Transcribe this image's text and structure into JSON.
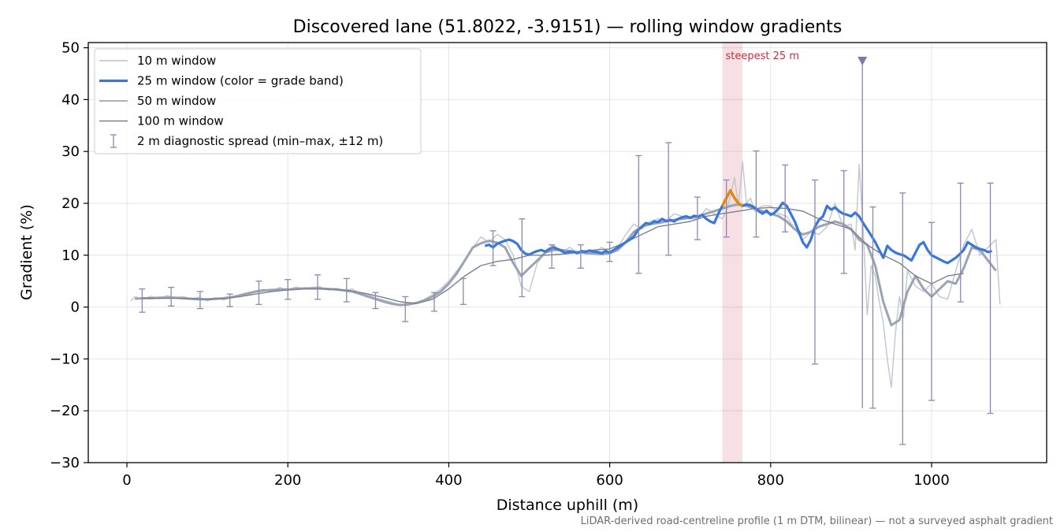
{
  "chart_data": {
    "type": "line",
    "title": "Discovered lane (51.8022, -3.9151) — rolling window gradients",
    "xlabel": "Distance uphill (m)",
    "ylabel": "Gradient (%)",
    "xlim": [
      -48,
      1143
    ],
    "ylim": [
      -30,
      51
    ],
    "xticks": [
      0,
      200,
      400,
      600,
      800,
      1000
    ],
    "yticks": [
      -30,
      -20,
      -10,
      0,
      10,
      20,
      30,
      40,
      50
    ],
    "grid": true,
    "legend_position": "top-left",
    "footnote": "LiDAR-derived road-centreline profile (1 m DTM, bilinear) — not a surveyed asphalt gradient",
    "annotation": {
      "label": "steepest 25 m",
      "x_start": 740,
      "x_end": 765,
      "color": "#c03040",
      "marker_x": 914,
      "marker_y": 47.5
    },
    "series": [
      {
        "name": "10 m window",
        "color": "#b8c0cc",
        "x": [
          5,
          10,
          20,
          30,
          40,
          50,
          60,
          70,
          80,
          90,
          100,
          110,
          120,
          130,
          140,
          150,
          160,
          170,
          180,
          190,
          200,
          210,
          220,
          230,
          240,
          250,
          260,
          270,
          280,
          290,
          300,
          310,
          320,
          330,
          340,
          350,
          360,
          370,
          380,
          390,
          400,
          410,
          420,
          430,
          440,
          450,
          460,
          470,
          480,
          490,
          500,
          510,
          520,
          530,
          540,
          550,
          560,
          570,
          580,
          590,
          600,
          610,
          620,
          630,
          640,
          650,
          660,
          670,
          680,
          690,
          700,
          710,
          720,
          730,
          740,
          745,
          750,
          755,
          760,
          765,
          770,
          775,
          780,
          790,
          800,
          810,
          820,
          830,
          840,
          850,
          860,
          870,
          880,
          890,
          900,
          905,
          910,
          915,
          920,
          925,
          930,
          935,
          940,
          945,
          950,
          955,
          960,
          965,
          970,
          980,
          990,
          1000,
          1010,
          1020,
          1030,
          1040,
          1050,
          1060,
          1070,
          1080,
          1085
        ],
        "y": [
          1.2,
          2.0,
          1.5,
          2.1,
          1.6,
          2.2,
          1.8,
          2.0,
          1.6,
          1.9,
          1.2,
          1.8,
          1.4,
          1.9,
          2.4,
          2.8,
          3.1,
          3.4,
          3.0,
          3.8,
          3.2,
          3.9,
          3.5,
          3.8,
          3.9,
          3.3,
          3.6,
          3.2,
          3.5,
          2.6,
          2.4,
          1.7,
          1.3,
          0.9,
          0.4,
          0.7,
          0.9,
          1.5,
          2.4,
          3.5,
          5.0,
          7.0,
          9.0,
          11.5,
          13.5,
          12.5,
          14.0,
          13.0,
          10.0,
          4.0,
          3.0,
          8.5,
          10.5,
          12.0,
          10.5,
          11.5,
          10.5,
          11.0,
          10.5,
          11.5,
          10.5,
          11.5,
          14.0,
          16.0,
          15.0,
          16.5,
          17.0,
          16.5,
          18.0,
          17.5,
          17.0,
          17.0,
          19.0,
          18.0,
          17.0,
          18.5,
          21.5,
          25.0,
          19.5,
          28.0,
          20.0,
          21.0,
          18.5,
          19.5,
          19.5,
          18.0,
          17.5,
          15.0,
          13.0,
          14.5,
          14.0,
          15.5,
          20.0,
          15.5,
          16.0,
          11.0,
          27.5,
          15.0,
          -1.5,
          8.0,
          6.0,
          1.0,
          -3.0,
          -10.0,
          -15.5,
          -5.0,
          2.0,
          -2.0,
          7.0,
          4.0,
          3.0,
          4.5,
          2.0,
          1.5,
          7.0,
          12.0,
          15.0,
          10.0,
          11.5,
          13.0,
          0.5
        ]
      },
      {
        "name": "25 m window (color = grade band)",
        "color": "#3a78d8",
        "x": [
          445,
          450,
          455,
          460,
          465,
          470,
          475,
          480,
          485,
          490,
          495,
          500,
          505,
          510,
          515,
          520,
          525,
          530,
          535,
          540,
          545,
          550,
          555,
          560,
          565,
          570,
          575,
          580,
          585,
          590,
          595,
          600,
          605,
          610,
          615,
          620,
          625,
          630,
          635,
          640,
          645,
          650,
          655,
          660,
          665,
          670,
          675,
          680,
          685,
          690,
          695,
          700,
          705,
          710,
          715,
          720,
          725,
          730,
          735,
          740,
          745,
          750,
          755,
          760,
          765,
          770,
          775,
          780,
          785,
          790,
          795,
          800,
          805,
          810,
          815,
          820,
          825,
          830,
          835,
          840,
          845,
          850,
          855,
          860,
          865,
          870,
          875,
          880,
          885,
          890,
          895,
          900,
          905,
          910,
          915,
          920,
          925,
          930,
          935,
          940,
          945,
          950,
          955,
          960,
          965,
          970,
          975,
          980,
          985,
          990,
          995,
          1000,
          1005,
          1010,
          1015,
          1020,
          1025,
          1030,
          1035,
          1040,
          1045,
          1050,
          1055,
          1060,
          1065,
          1070,
          1075
        ],
        "y": [
          11.8,
          12.0,
          11.5,
          12.2,
          12.5,
          12.8,
          13.0,
          12.7,
          12.2,
          11.0,
          10.3,
          10.1,
          10.5,
          10.8,
          11.0,
          10.7,
          11.2,
          11.5,
          11.2,
          10.9,
          10.4,
          10.7,
          10.6,
          10.4,
          10.8,
          10.6,
          10.9,
          10.7,
          10.6,
          10.4,
          10.8,
          10.5,
          11.0,
          11.5,
          12.0,
          12.5,
          13.0,
          13.6,
          14.8,
          15.5,
          16.2,
          16.0,
          16.5,
          16.4,
          17.0,
          16.6,
          16.8,
          16.5,
          17.0,
          17.3,
          17.5,
          17.2,
          17.6,
          17.4,
          17.8,
          17.0,
          16.5,
          16.2,
          18.0,
          19.5,
          21.0,
          22.5,
          21.0,
          20.0,
          19.5,
          19.8,
          19.6,
          19.2,
          18.5,
          18.0,
          18.6,
          17.8,
          18.2,
          19.0,
          20.1,
          19.5,
          18.0,
          16.5,
          14.5,
          12.5,
          11.5,
          13.0,
          15.5,
          16.8,
          17.5,
          19.5,
          18.8,
          19.2,
          18.5,
          18.0,
          17.8,
          17.5,
          18.2,
          17.5,
          16.2,
          15.0,
          13.8,
          12.5,
          11.0,
          9.5,
          11.8,
          11.0,
          10.5,
          10.2,
          10.0,
          9.5,
          9.0,
          10.5,
          12.0,
          12.5,
          11.0,
          10.0,
          9.6,
          9.2,
          8.8,
          8.5,
          9.0,
          9.5,
          10.2,
          11.0,
          12.5,
          12.0,
          11.5,
          11.2,
          11.0,
          10.6,
          10.8
        ]
      },
      {
        "name": "50 m window",
        "color": "#9aa4b4",
        "x": [
          10,
          20,
          30,
          40,
          50,
          60,
          70,
          80,
          90,
          100,
          110,
          120,
          130,
          140,
          150,
          160,
          170,
          180,
          190,
          200,
          210,
          220,
          230,
          240,
          250,
          260,
          270,
          280,
          290,
          300,
          310,
          320,
          330,
          340,
          350,
          360,
          370,
          380,
          390,
          400,
          410,
          420,
          430,
          440,
          450,
          460,
          470,
          480,
          490,
          500,
          510,
          520,
          530,
          540,
          550,
          560,
          570,
          580,
          590,
          600,
          610,
          620,
          630,
          640,
          650,
          660,
          670,
          680,
          690,
          700,
          710,
          720,
          730,
          740,
          750,
          760,
          770,
          780,
          790,
          800,
          810,
          820,
          830,
          840,
          850,
          860,
          870,
          880,
          890,
          900,
          910,
          920,
          930,
          940,
          950,
          960,
          970,
          980,
          990,
          1000,
          1010,
          1020,
          1030,
          1040,
          1050,
          1060,
          1070,
          1080
        ],
        "y": [
          1.6,
          1.7,
          1.7,
          1.8,
          1.8,
          1.8,
          1.7,
          1.6,
          1.5,
          1.5,
          1.6,
          1.7,
          1.9,
          2.2,
          2.6,
          3.0,
          3.2,
          3.3,
          3.4,
          3.4,
          3.5,
          3.6,
          3.6,
          3.6,
          3.5,
          3.4,
          3.2,
          3.0,
          2.5,
          2.0,
          1.5,
          1.0,
          0.6,
          0.4,
          0.5,
          0.8,
          1.3,
          2.0,
          3.0,
          4.5,
          6.5,
          9.0,
          11.5,
          12.3,
          12.8,
          12.4,
          11.5,
          8.5,
          6.0,
          7.5,
          9.0,
          10.5,
          11.0,
          11.0,
          10.8,
          10.6,
          10.4,
          10.3,
          10.2,
          10.4,
          11.0,
          12.5,
          14.5,
          15.5,
          16.0,
          16.2,
          16.5,
          16.8,
          17.0,
          17.2,
          17.5,
          18.0,
          18.5,
          19.0,
          19.5,
          19.8,
          19.5,
          19.0,
          18.5,
          18.0,
          17.5,
          16.5,
          15.0,
          14.0,
          14.5,
          15.5,
          16.0,
          16.5,
          16.0,
          15.0,
          13.0,
          12.0,
          8.0,
          1.0,
          -3.5,
          -2.5,
          3.0,
          6.0,
          3.5,
          2.0,
          3.5,
          5.0,
          4.5,
          7.5,
          11.5,
          11.0,
          9.0,
          7.0
        ]
      },
      {
        "name": "100 m window",
        "color": "#7c808a",
        "x": [
          20,
          40,
          60,
          80,
          100,
          120,
          140,
          160,
          180,
          200,
          220,
          240,
          260,
          280,
          300,
          320,
          340,
          360,
          380,
          400,
          420,
          440,
          460,
          480,
          500,
          520,
          540,
          560,
          580,
          600,
          620,
          640,
          660,
          680,
          700,
          720,
          740,
          760,
          780,
          800,
          820,
          840,
          860,
          880,
          900,
          920,
          940,
          960,
          980,
          1000,
          1020,
          1040
        ],
        "y": [
          1.7,
          1.7,
          1.7,
          1.6,
          1.5,
          1.6,
          2.0,
          2.5,
          3.0,
          3.3,
          3.5,
          3.5,
          3.4,
          3.1,
          2.5,
          1.8,
          1.0,
          0.7,
          1.5,
          3.5,
          6.0,
          8.0,
          8.8,
          9.2,
          10.0,
          10.0,
          10.2,
          10.5,
          11.0,
          11.2,
          12.5,
          14.0,
          15.5,
          16.0,
          16.5,
          17.5,
          18.0,
          18.5,
          19.0,
          19.2,
          19.0,
          18.5,
          17.0,
          16.0,
          15.0,
          12.0,
          10.0,
          8.5,
          6.0,
          4.5,
          6.0,
          6.5
        ]
      },
      {
        "name": "2 m diagnostic spread (min–max, ±12 m)",
        "color": "#8c88b0",
        "x": [
          19,
          55,
          91,
          128,
          164,
          200,
          237,
          273,
          309,
          346,
          382,
          418,
          455,
          491,
          528,
          564,
          600,
          636,
          673,
          709,
          745,
          782,
          818,
          855,
          891,
          927,
          964,
          1000,
          1036,
          1073
        ],
        "low": [
          -1.0,
          0.2,
          -0.3,
          0.1,
          0.5,
          1.5,
          1.5,
          1.0,
          -0.3,
          -2.8,
          -0.8,
          0.5,
          8.0,
          2.0,
          7.5,
          7.5,
          8.8,
          6.5,
          10.0,
          13.0,
          13.5,
          13.5,
          14.5,
          -11.0,
          6.5,
          -19.5,
          -26.5,
          -18.0,
          1.0,
          -20.5
        ],
        "high": [
          3.5,
          3.8,
          3.0,
          2.5,
          5.0,
          5.3,
          6.2,
          5.5,
          2.8,
          2.0,
          2.8,
          5.5,
          14.7,
          17.0,
          12.0,
          12.0,
          12.5,
          29.2,
          31.7,
          21.2,
          24.5,
          30.1,
          27.4,
          24.5,
          26.3,
          19.3,
          22.0,
          16.3,
          23.9,
          23.9
        ]
      }
    ]
  }
}
